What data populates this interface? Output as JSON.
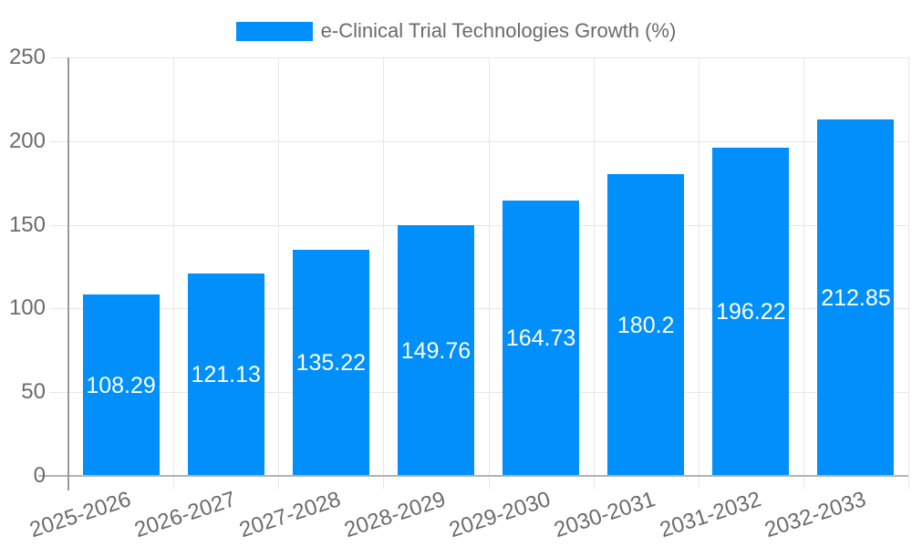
{
  "legend": {
    "label": "e-Clinical Trial Technologies Growth (%)"
  },
  "chart_data": {
    "type": "bar",
    "title": "",
    "xlabel": "",
    "ylabel": "",
    "categories": [
      "2025-2026",
      "2026-2027",
      "2027-2028",
      "2028-2029",
      "2029-2030",
      "2030-2031",
      "2031-2032",
      "2032-2033"
    ],
    "series": [
      {
        "name": "e-Clinical Trial Technologies Growth (%)",
        "values": [
          108.29,
          121.13,
          135.22,
          149.76,
          164.73,
          180.2,
          196.22,
          212.85
        ]
      }
    ],
    "ylim": [
      0,
      250
    ],
    "yticks": [
      0,
      50,
      100,
      150,
      200,
      250
    ],
    "grid": true,
    "legend_position": "top-center",
    "x_label_rotation_deg": -18,
    "data_labels": "inside-center",
    "colors": {
      "bar": "#008FFB",
      "grid": "#e7e7e7",
      "axis_line": "#9a9a9a",
      "tick": "#b3b3b3",
      "label": "#6b6b6b",
      "data_label": "#ffffff"
    }
  }
}
